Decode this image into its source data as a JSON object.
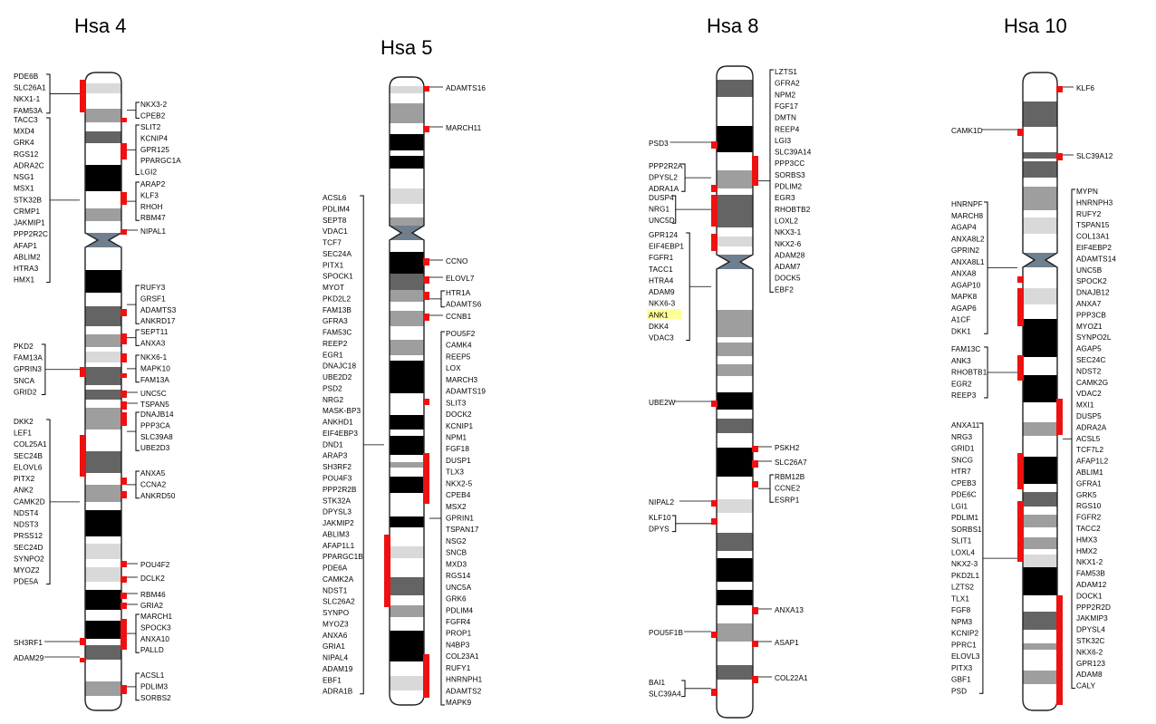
{
  "colors": {
    "marker": "#ee1111",
    "highlight": "#ffff99",
    "outline": "#222222",
    "centromere": "#6f7f8e",
    "bands": {
      "white": "#ffffff",
      "light": "#d9d9d9",
      "mid": "#9e9e9e",
      "dark": "#646464",
      "black": "#000000"
    }
  },
  "chromosomes": [
    {
      "id": "hsa4",
      "title": "Hsa 4",
      "left_groups": [
        {
          "labels": [
            "PDE6B",
            "SLC26A1",
            "NKX1-1",
            "FAM53A"
          ],
          "bracket": true
        },
        {
          "labels": [
            "TACC3",
            "MXD4",
            "GRK4",
            "RGS12",
            "ADRA2C",
            "NSG1",
            "MSX1",
            "STK32B",
            "CRMP1",
            "JAKMIP1",
            "PPP2R2C",
            "AFAP1",
            "ABLIM2",
            "HTRA3",
            "HMX1"
          ],
          "bracket": true
        },
        {
          "labels": [
            "PKD2",
            "FAM13A",
            "GPRIN3",
            "SNCA",
            "GRID2"
          ],
          "bracket": true
        },
        {
          "labels": [
            "DKK2",
            "LEF1",
            "COL25A1",
            "SEC24B",
            "ELOVL6",
            "PITX2",
            "ANK2",
            "CAMK2D",
            "NDST4",
            "NDST3",
            "PRSS12",
            "SEC24D",
            "SYNPO2",
            "MYOZ2",
            "PDE5A"
          ],
          "bracket": true
        },
        {
          "labels": [
            "SH3RF1"
          ],
          "bracket": false
        },
        {
          "labels": [
            "ADAM29"
          ],
          "bracket": false
        }
      ],
      "right_groups": [
        {
          "labels": [
            "NKX3-2",
            "CPEB2"
          ],
          "bracket": true
        },
        {
          "labels": [
            "SLIT2",
            "KCNIP4",
            "GPR125",
            "PPARGC1A",
            "LGI2"
          ],
          "bracket": true
        },
        {
          "labels": [
            "ARAP2",
            "KLF3",
            "RHOH",
            "RBM47"
          ],
          "bracket": true
        },
        {
          "labels": [
            "NIPAL1"
          ],
          "bracket": false
        },
        {
          "labels": [
            "RUFY3",
            "GRSF1",
            "ADAMTS3",
            "ANKRD17"
          ],
          "bracket": true
        },
        {
          "labels": [
            "SEPT11",
            "ANXA3"
          ],
          "bracket": true
        },
        {
          "labels": [
            "NKX6-1",
            "MAPK10",
            "FAM13A"
          ],
          "bracket": true
        },
        {
          "labels": [
            "UNC5C"
          ],
          "bracket": false
        },
        {
          "labels": [
            "TSPAN5"
          ],
          "bracket": false
        },
        {
          "labels": [
            "DNAJB14",
            "PPP3CA",
            "SLC39A8",
            "UBE2D3"
          ],
          "bracket": true
        },
        {
          "labels": [
            "ANXA5",
            "CCNA2",
            "ANKRD50"
          ],
          "bracket": true
        },
        {
          "labels": [
            "POU4F2"
          ],
          "bracket": false
        },
        {
          "labels": [
            "DCLK2"
          ],
          "bracket": false
        },
        {
          "labels": [
            "RBM46"
          ],
          "bracket": false
        },
        {
          "labels": [
            "GRIA2"
          ],
          "bracket": false
        },
        {
          "labels": [
            "MARCH1",
            "SPOCK3",
            "ANXA10",
            "PALLD"
          ],
          "bracket": true
        },
        {
          "labels": [
            "ACSL1",
            "PDLIM3",
            "SORBS2"
          ],
          "bracket": true
        }
      ]
    },
    {
      "id": "hsa5",
      "title": "Hsa 5",
      "left_groups": [
        {
          "labels": [
            "ACSL6",
            "PDLIM4",
            "SEPT8",
            "VDAC1",
            "TCF7",
            "SEC24A",
            "PITX1",
            "SPOCK1",
            "MYOT",
            "PKD2L2",
            "FAM13B",
            "GFRA3",
            "FAM53C",
            "REEP2",
            "EGR1",
            "DNAJC18",
            "UBE2D2",
            "PSD2",
            "NRG2",
            "MASK-BP3",
            "ANKHD1",
            "EIF4EBP3",
            "DND1",
            "ARAP3",
            "SH3RF2",
            "POU4F3",
            "PPP2R2B",
            "STK32A",
            "DPYSL3",
            "JAKMIP2",
            "ABLIM3",
            "AFAP1L1",
            "PPARGC1B",
            "PDE6A",
            "CAMK2A",
            "NDST1",
            "SLC26A2",
            "SYNPO",
            "MYOZ3",
            "ANXA6",
            "GRIA1",
            "NIPAL4",
            "ADAM19",
            "EBF1",
            "ADRA1B"
          ],
          "bracket": true
        }
      ],
      "right_groups": [
        {
          "labels": [
            "ADAMTS16"
          ],
          "bracket": false
        },
        {
          "labels": [
            "MARCH11"
          ],
          "bracket": false
        },
        {
          "labels": [
            "CCNO"
          ],
          "bracket": false
        },
        {
          "labels": [
            "ELOVL7"
          ],
          "bracket": false
        },
        {
          "labels": [
            "HTR1A",
            "ADAMTS6"
          ],
          "bracket": true
        },
        {
          "labels": [
            "CCNB1"
          ],
          "bracket": false
        },
        {
          "labels": [
            "POU5F2",
            "CAMK4",
            "REEP5",
            "LOX",
            "MARCH3",
            "ADAMTS19",
            "SLIT3",
            "DOCK2",
            "KCNIP1",
            "NPM1",
            "FGF18",
            "DUSP1",
            "TLX3",
            "NKX2-5",
            "CPEB4",
            "MSX2",
            "GPRIN1",
            "TSPAN17",
            "NSG2",
            "SNCB",
            "MXD3",
            "RGS14",
            "UNC5A",
            "GRK6",
            "PDLIM4",
            "FGFR4",
            "PROP1",
            "N4BP3",
            "COL23A1",
            "RUFY1",
            "HNRNPH1",
            "ADAMTS2",
            "MAPK9"
          ],
          "bracket": true
        }
      ]
    },
    {
      "id": "hsa8",
      "title": "Hsa 8",
      "left_groups": [
        {
          "labels": [
            "PSD3"
          ],
          "bracket": false
        },
        {
          "labels": [
            "PPP2R2A",
            "DPYSL2",
            "ADRA1A"
          ],
          "bracket": true
        },
        {
          "labels": [
            "DUSP4",
            "NRG1",
            "UNC5D"
          ],
          "bracket": true
        },
        {
          "labels": [
            "GPR124",
            "EIF4EBP1",
            "FGFR1",
            "TACC1",
            "HTRA4",
            "ADAM9",
            "NKX6-3",
            "ANK1",
            "DKK4",
            "VDAC3"
          ],
          "bracket": true
        },
        {
          "labels": [
            "UBE2W"
          ],
          "bracket": false
        },
        {
          "labels": [
            "NIPAL2"
          ],
          "bracket": false
        },
        {
          "labels": [
            "KLF10",
            "DPYS"
          ],
          "bracket": true
        },
        {
          "labels": [
            "POU5F1B"
          ],
          "bracket": false
        },
        {
          "labels": [
            "BAI1",
            "SLC39A4"
          ],
          "bracket": true
        }
      ],
      "right_groups": [
        {
          "labels": [
            "LZTS1",
            "GFRA2",
            "NPM2",
            "FGF17",
            "DMTN",
            "REEP4",
            "LGI3",
            "SLC39A14",
            "PPP3CC",
            "SORBS3",
            "PDLIM2",
            "EGR3",
            "RHOBTB2",
            "LOXL2",
            "NKX3-1",
            "NKX2-6",
            "ADAM28",
            "ADAM7",
            "DOCK5",
            "EBF2"
          ],
          "bracket": true
        },
        {
          "labels": [
            "PSKH2"
          ],
          "bracket": false
        },
        {
          "labels": [
            "SLC26A7"
          ],
          "bracket": false
        },
        {
          "labels": [
            "RBM12B",
            "CCNE2",
            "ESRP1"
          ],
          "bracket": true
        },
        {
          "labels": [
            "ANXA13"
          ],
          "bracket": false
        },
        {
          "labels": [
            "ASAP1"
          ],
          "bracket": false
        },
        {
          "labels": [
            "COL22A1"
          ],
          "bracket": false
        }
      ],
      "highlighted_label": "ANK1"
    },
    {
      "id": "hsa10",
      "title": "Hsa 10",
      "left_groups": [
        {
          "labels": [
            "CAMK1D"
          ],
          "bracket": false
        },
        {
          "labels": [
            "HNRNPF",
            "MARCH8",
            "AGAP4",
            "ANXA8L2",
            "GPRIN2",
            "ANXA8L1",
            "ANXA8",
            "AGAP10",
            "MAPK8",
            "AGAP6",
            "A1CF",
            "DKK1"
          ],
          "bracket": true
        },
        {
          "labels": [
            "FAM13C",
            "ANK3",
            "RHOBTB1",
            "EGR2",
            "REEP3"
          ],
          "bracket": true
        },
        {
          "labels": [
            "ANXA11",
            "NRG3",
            "GRID1",
            "SNCG",
            "HTR7",
            "CPEB3",
            "PDE6C",
            "LGI1",
            "PDLIM1",
            "SORBS1",
            "SLIT1",
            "LOXL4",
            "NKX2-3",
            "PKD2L1",
            "LZTS2",
            "TLX1",
            "FGF8",
            "NPM3",
            "KCNIP2",
            "PPRC1",
            "ELOVL3",
            "PITX3",
            "GBF1",
            "PSD"
          ],
          "bracket": true
        }
      ],
      "right_groups": [
        {
          "labels": [
            "KLF6"
          ],
          "bracket": false
        },
        {
          "labels": [
            "SLC39A12"
          ],
          "bracket": false
        },
        {
          "labels": [
            "MYPN",
            "HNRNPH3",
            "RUFY2",
            "TSPAN15",
            "COL13A1",
            "EIF4EBP2",
            "ADAMTS14",
            "UNC5B",
            "SPOCK2",
            "DNAJB12",
            "ANXA7",
            "PPP3CB",
            "MYOZ1",
            "SYNPO2L",
            "AGAP5",
            "SEC24C",
            "NDST2",
            "CAMK2G",
            "VDAC2",
            "MXI1",
            "DUSP5",
            "ADRA2A",
            "ACSL5",
            "TCF7L2",
            "AFAP1L2",
            "ABLIM1",
            "GFRA1",
            "GRK5",
            "RGS10",
            "FGFR2",
            "TACC2",
            "HMX3",
            "HMX2",
            "NKX1-2",
            "FAM53B",
            "ADAM12",
            "DOCK1",
            "PPP2R2D",
            "JAKMIP3",
            "DPYSL4",
            "STK32C",
            "NKX6-2",
            "GPR123",
            "ADAM8",
            "CALY"
          ],
          "bracket": true
        }
      ]
    }
  ]
}
